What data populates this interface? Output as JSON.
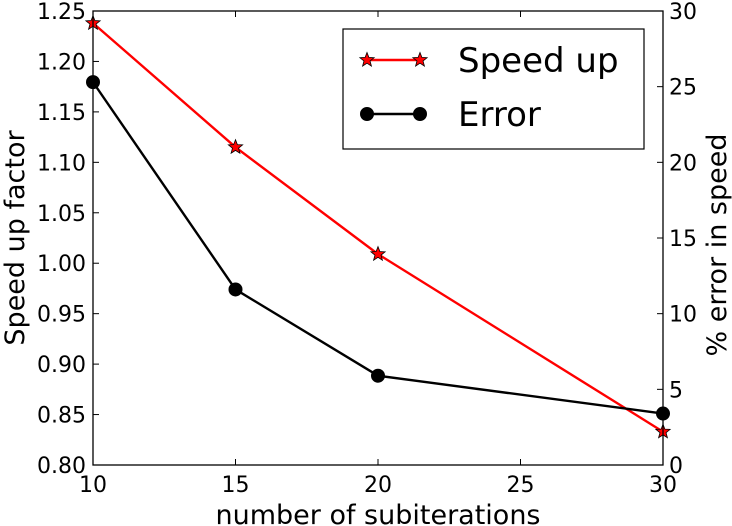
{
  "chart_data": {
    "type": "line",
    "title": "",
    "xlabel": "number of subiterations",
    "ylabel": "Speed up factor",
    "y2label": "% error in speed",
    "x": [
      10,
      15,
      20,
      30
    ],
    "xlim": [
      10,
      30
    ],
    "ylim": [
      0.8,
      1.25
    ],
    "y2lim": [
      0,
      30
    ],
    "x_ticks": [
      10,
      15,
      20,
      25,
      30
    ],
    "x_tick_labels": [
      "10",
      "15",
      "20",
      "25",
      "30"
    ],
    "y_ticks": [
      0.8,
      0.85,
      0.9,
      0.95,
      1.0,
      1.05,
      1.1,
      1.15,
      1.2,
      1.25
    ],
    "y_tick_labels": [
      "0.80",
      "0.85",
      "0.90",
      "0.95",
      "1.00",
      "1.05",
      "1.10",
      "1.15",
      "1.20",
      "1.25"
    ],
    "y2_ticks": [
      0,
      5,
      10,
      15,
      20,
      25,
      30
    ],
    "y2_tick_labels": [
      "0",
      "5",
      "10",
      "15",
      "20",
      "25",
      "30"
    ],
    "grid": false,
    "legend_position": "top-right",
    "series": [
      {
        "name": "Speed up",
        "axis": "left",
        "values": [
          1.238,
          1.115,
          1.009,
          0.833
        ],
        "color": "#ff0000",
        "marker": "star"
      },
      {
        "name": "Error",
        "axis": "right",
        "values": [
          25.3,
          11.6,
          5.9,
          3.4
        ],
        "color": "#000000",
        "marker": "circle"
      }
    ]
  }
}
